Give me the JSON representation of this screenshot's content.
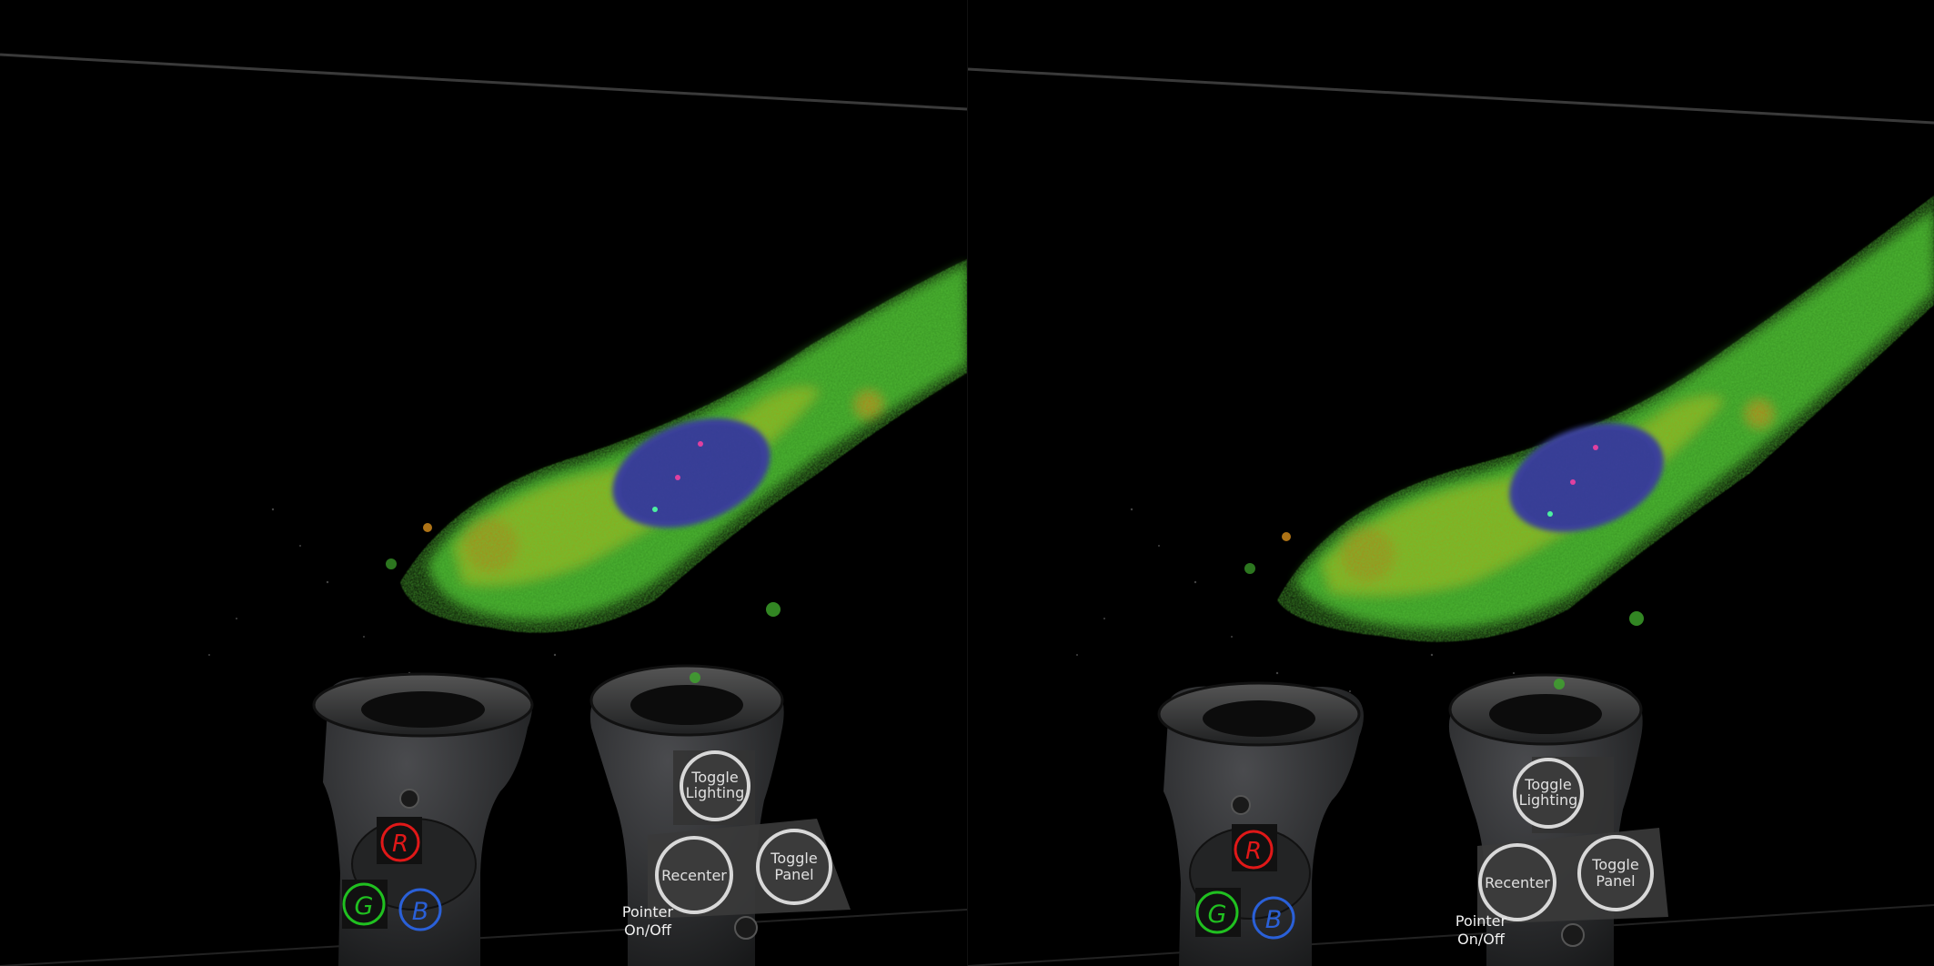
{
  "scene": {
    "views": [
      "left-eye",
      "right-eye"
    ],
    "background_color": "#000000"
  },
  "rgb_controller": {
    "buttons": [
      {
        "key": "r",
        "label": "R",
        "color": "#e01818"
      },
      {
        "key": "g",
        "label": "G",
        "color": "#20c020"
      },
      {
        "key": "b",
        "label": "B",
        "color": "#2a60d8"
      }
    ]
  },
  "menu_controller": {
    "toggle_lighting": [
      "Toggle",
      "Lighting"
    ],
    "recenter": "Recenter",
    "toggle_panel": [
      "Toggle",
      "Panel"
    ],
    "pointer_hint": [
      "Pointer",
      "On/Off"
    ]
  },
  "colors": {
    "cell_green": "#3fa82c",
    "cell_yellow": "#c8c820",
    "cell_orange": "#d9901c",
    "nucleus_blue": "#3a3f9a",
    "controller_body": "#2e2f31"
  }
}
